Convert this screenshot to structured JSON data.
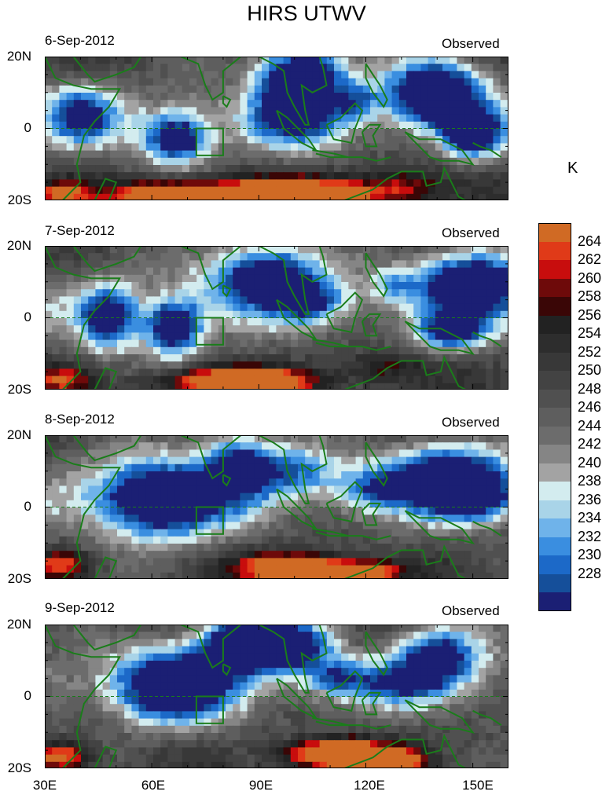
{
  "title": "HIRS UTWV",
  "panels": [
    {
      "date": "6-Sep-2012",
      "label": "Observed",
      "seed": 11
    },
    {
      "date": "7-Sep-2012",
      "label": "Observed",
      "seed": 23
    },
    {
      "date": "8-Sep-2012",
      "label": "Observed",
      "seed": 37
    },
    {
      "date": "9-Sep-2012",
      "label": "Observed",
      "seed": 53
    }
  ],
  "lat_labels": {
    "north": "20N",
    "equator": "0",
    "south": "20S"
  },
  "lon_labels": [
    "30E",
    "60E",
    "90E",
    "120E",
    "150E"
  ],
  "colorbar": {
    "unit": "K",
    "ticks": [
      "264",
      "262",
      "260",
      "258",
      "256",
      "254",
      "252",
      "250",
      "248",
      "246",
      "244",
      "242",
      "240",
      "238",
      "236",
      "234",
      "232",
      "230",
      "228"
    ],
    "colors": [
      "#d06a24",
      "#e03a18",
      "#c80d0d",
      "#6e0a0a",
      "#3a0606",
      "#222222",
      "#2d2d2d",
      "#383838",
      "#434343",
      "#505050",
      "#5e5e5e",
      "#6c6c6c",
      "#858585",
      "#a3a3a3",
      "#d3ecef",
      "#a9d4e8",
      "#6fb3ea",
      "#3a8ee0",
      "#1c69c8",
      "#154f9a",
      "#1b1f74"
    ]
  },
  "accent_colors": {
    "coastline": "#1a7d1a",
    "box": "#1a7d1a"
  }
}
